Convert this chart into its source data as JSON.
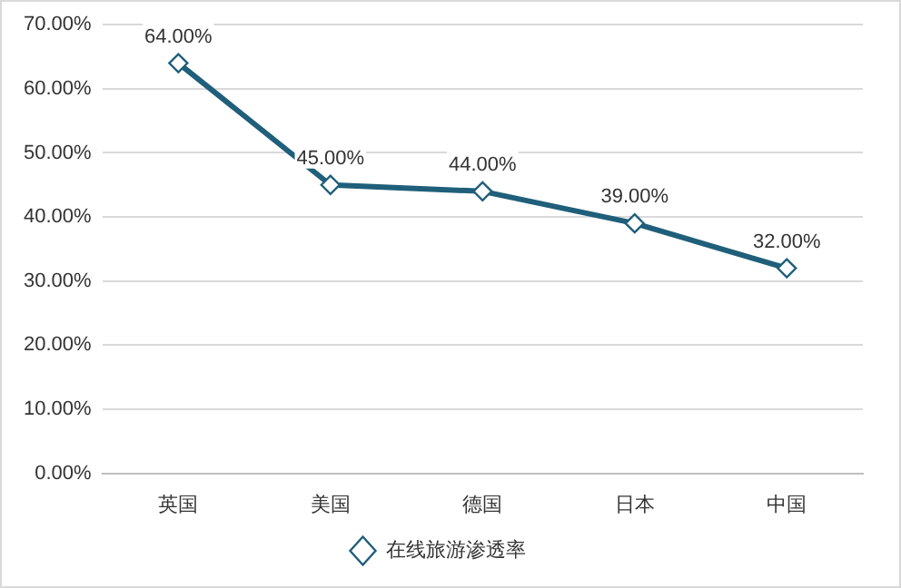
{
  "chart_data": {
    "type": "line",
    "categories": [
      "英国",
      "美国",
      "德国",
      "日本",
      "中国"
    ],
    "series": [
      {
        "name": "在线旅游渗透率",
        "color": "#1f5f7a",
        "values": [
          64,
          45,
          44,
          39,
          32
        ],
        "value_labels": [
          "64.00%",
          "45.00%",
          "44.00%",
          "39.00%",
          "32.00%"
        ]
      }
    ],
    "ylim": [
      0,
      70
    ],
    "yticks": [
      {
        "value": 0,
        "label": "0.00%"
      },
      {
        "value": 10,
        "label": "10.00%"
      },
      {
        "value": 20,
        "label": "20.00%"
      },
      {
        "value": 30,
        "label": "30.00%"
      },
      {
        "value": 40,
        "label": "40.00%"
      },
      {
        "value": 50,
        "label": "50.00%"
      },
      {
        "value": 60,
        "label": "60.00%"
      },
      {
        "value": 70,
        "label": "70.00%"
      }
    ],
    "grid": "y",
    "legend": "bottom",
    "marker": "diamond",
    "line_style": "solid"
  }
}
